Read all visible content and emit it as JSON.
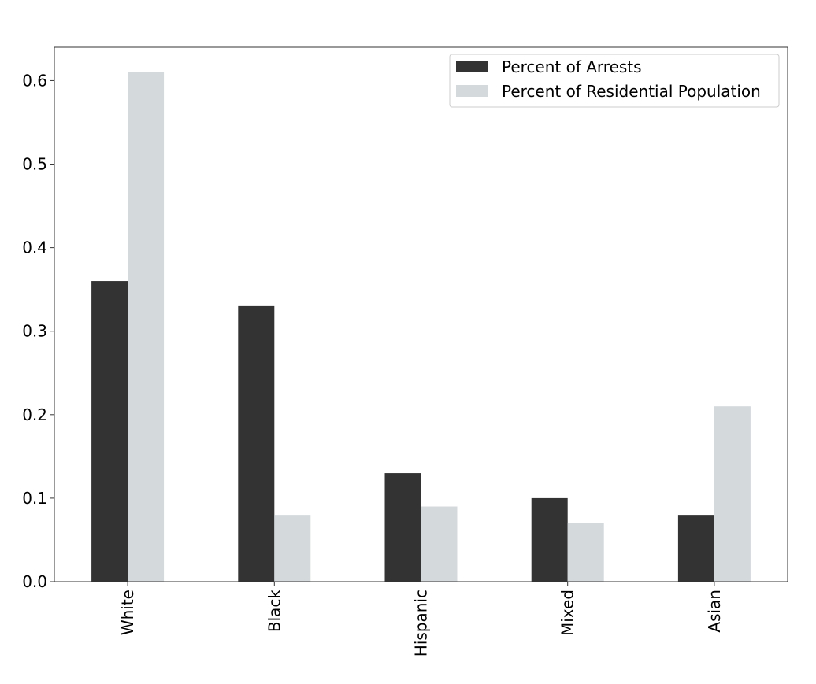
{
  "chart_data": {
    "type": "bar",
    "categories": [
      "White",
      "Black",
      "Hispanic",
      "Mixed",
      "Asian"
    ],
    "series": [
      {
        "name": "Percent of Arrests",
        "values": [
          0.36,
          0.33,
          0.13,
          0.1,
          0.08
        ],
        "color": "#333333"
      },
      {
        "name": "Percent of Residential Population",
        "values": [
          0.61,
          0.08,
          0.09,
          0.07,
          0.21
        ],
        "color": "#d4d9dc"
      }
    ],
    "title": "",
    "xlabel": "",
    "ylabel": "",
    "ylim": [
      0,
      0.64
    ],
    "yticks": [
      "0.0",
      "0.1",
      "0.2",
      "0.3",
      "0.4",
      "0.5",
      "0.6"
    ],
    "grid": false,
    "legend_position": "top-right"
  }
}
